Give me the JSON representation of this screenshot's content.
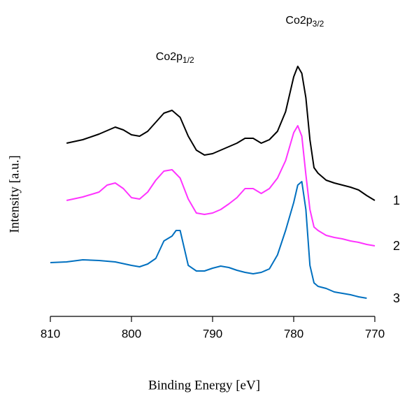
{
  "chart_data": {
    "type": "line",
    "x_label": "Binding Energy [eV]",
    "y_label": "Intensity [a.u.]",
    "xlim": [
      810,
      770
    ],
    "xticks": [
      810,
      800,
      790,
      780,
      770
    ],
    "ylim": [
      0,
      400
    ],
    "annotations": [
      {
        "text": "Co2p",
        "sub": "1/2",
        "x": 797,
        "y": 371
      },
      {
        "text": "Co2p",
        "sub": "3/2",
        "x": 781,
        "y": 423
      }
    ],
    "series": [
      {
        "name": "1",
        "color": "#000000",
        "x": [
          808,
          806,
          804,
          802,
          801,
          800,
          799,
          798,
          797,
          796,
          795,
          794,
          793,
          792,
          791,
          790,
          789,
          788,
          787,
          786,
          785,
          784,
          783,
          782,
          781,
          780,
          779.5,
          779,
          778.5,
          778,
          777.5,
          777,
          776,
          775,
          774,
          773,
          772,
          771,
          770
        ],
        "values": [
          248,
          253,
          261,
          271,
          267,
          260,
          258,
          265,
          278,
          291,
          295,
          285,
          258,
          238,
          231,
          233,
          238,
          243,
          248,
          255,
          255,
          248,
          253,
          265,
          293,
          343,
          358,
          348,
          313,
          253,
          213,
          205,
          195,
          191,
          188,
          185,
          181,
          173,
          166
        ]
      },
      {
        "name": "2",
        "color": "#ff33ff",
        "x": [
          808,
          806,
          804,
          803,
          802,
          801,
          800,
          799,
          798,
          797,
          796,
          795,
          794,
          793,
          792,
          791,
          790,
          789,
          788,
          787,
          786,
          785,
          784,
          783,
          782,
          781,
          780,
          779.5,
          779,
          778.5,
          778,
          777.5,
          777,
          776,
          775,
          774,
          773,
          772,
          771,
          770
        ],
        "values": [
          166,
          171,
          178,
          188,
          191,
          183,
          170,
          168,
          178,
          195,
          208,
          210,
          198,
          168,
          148,
          146,
          148,
          153,
          161,
          170,
          183,
          183,
          176,
          183,
          198,
          223,
          263,
          273,
          258,
          203,
          153,
          128,
          123,
          116,
          113,
          111,
          108,
          106,
          103,
          101
        ]
      },
      {
        "name": "3",
        "color": "#0070c0",
        "x": [
          810,
          808,
          806,
          804,
          802,
          800,
          799,
          798,
          797,
          796,
          795,
          794.5,
          794,
          793.5,
          793,
          792,
          791,
          790,
          789,
          788,
          787,
          786,
          785,
          784,
          783,
          782,
          781,
          780,
          779.5,
          779,
          778.5,
          778,
          777.5,
          777,
          776,
          775,
          774,
          773,
          772,
          771
        ],
        "values": [
          77,
          78,
          81,
          80,
          78,
          73,
          71,
          75,
          83,
          108,
          115,
          123,
          123,
          98,
          73,
          65,
          65,
          69,
          72,
          70,
          66,
          63,
          61,
          63,
          68,
          88,
          123,
          163,
          188,
          193,
          153,
          73,
          48,
          43,
          40,
          35,
          33,
          31,
          28,
          26
        ]
      }
    ]
  }
}
